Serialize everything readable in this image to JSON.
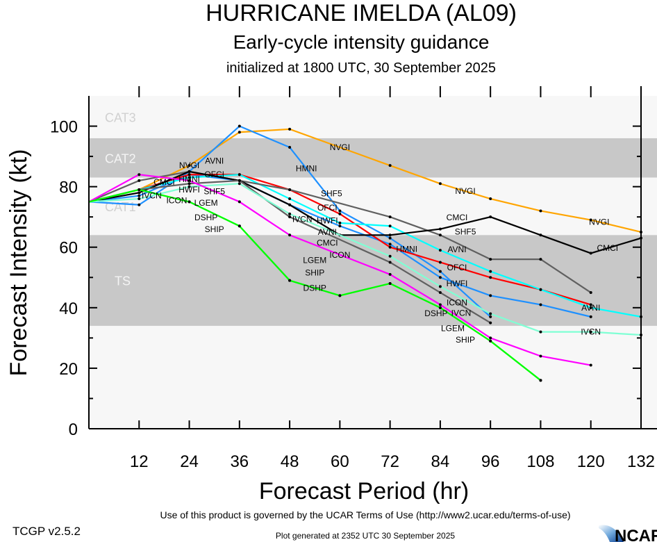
{
  "chart_data": {
    "type": "line",
    "title": "HURRICANE IMELDA (AL09)",
    "subtitle": "Early-cycle intensity guidance",
    "subtitle2": "initialized at 1800 UTC, 30 September 2025",
    "xlabel": "Forecast Period (hr)",
    "ylabel": "Forecast Intensity (kt)",
    "xlim": [
      0,
      132
    ],
    "ylim": [
      0,
      110
    ],
    "xticks": [
      12,
      24,
      36,
      48,
      60,
      72,
      84,
      96,
      108,
      120,
      132
    ],
    "yticks": [
      0,
      20,
      40,
      60,
      80,
      100
    ],
    "grid": false,
    "bands": [
      {
        "label": "CAT3",
        "from": 96,
        "to": 110,
        "color": "#f7f7f7",
        "label_color": "#d0d0d0"
      },
      {
        "label": "CAT2",
        "from": 83,
        "to": 96,
        "color": "#c8c8c8",
        "label_color": "#f4f4f4"
      },
      {
        "label": "CAT1",
        "from": 64,
        "to": 83,
        "color": "#f7f7f7",
        "label_color": "#d0d0d0"
      },
      {
        "label": "TS",
        "from": 34,
        "to": 64,
        "color": "#c8c8c8",
        "label_color": "#f4f4f4"
      },
      {
        "label": "",
        "from": 0,
        "to": 34,
        "color": "#f7f7f7",
        "label_color": "#d0d0d0"
      }
    ],
    "series": [
      {
        "name": "NVGI",
        "color": "#ffa500",
        "x": [
          0,
          12,
          24,
          36,
          48,
          72,
          84,
          96,
          108,
          120,
          132
        ],
        "y": [
          75,
          79,
          87,
          98,
          99,
          87,
          81,
          76,
          72,
          69,
          65
        ],
        "label_at": [
          24,
          60,
          90,
          122
        ]
      },
      {
        "name": "HMNI",
        "color": "#1e90ff",
        "x": [
          0,
          12,
          24,
          36,
          48,
          60,
          72,
          84,
          96
        ],
        "y": [
          75,
          74,
          85,
          100,
          93,
          72,
          63,
          52,
          37
        ],
        "label_at": [
          24,
          52,
          76
        ]
      },
      {
        "name": "HWFI",
        "color": "#1e90ff",
        "x": [
          0,
          12,
          24,
          36,
          48,
          60,
          72,
          84,
          96,
          108,
          120
        ],
        "y": [
          75,
          77,
          84,
          82,
          74,
          67,
          61,
          50,
          44,
          41,
          37
        ],
        "label_at": [
          24,
          57,
          88
        ]
      },
      {
        "name": "OFCI",
        "color": "#ff0000",
        "x": [
          0,
          12,
          24,
          36,
          48,
          60,
          72,
          84,
          96,
          108,
          120
        ],
        "y": [
          75,
          79,
          84,
          84,
          79,
          71,
          60,
          55,
          50,
          46,
          41
        ],
        "label_at": [
          24,
          57,
          88
        ]
      },
      {
        "name": "AVNI",
        "color": "#00ffff",
        "x": [
          0,
          12,
          24,
          36,
          48,
          60,
          72,
          84,
          96,
          108,
          120,
          132
        ],
        "y": [
          75,
          79,
          83,
          84,
          76,
          68,
          67,
          59,
          52,
          46,
          40,
          37
        ],
        "label_at": [
          24,
          57,
          88,
          120
        ]
      },
      {
        "name": "SHF5",
        "color": "#606060",
        "x": [
          0,
          12,
          24,
          36,
          48,
          72,
          84,
          96,
          108,
          120
        ],
        "y": [
          75,
          82,
          85,
          82,
          79,
          70,
          64,
          56,
          56,
          45
        ],
        "label_at": [
          24,
          58,
          90
        ]
      },
      {
        "name": "CMCI",
        "color": "#000000",
        "x": [
          0,
          12,
          24,
          36,
          48,
          60,
          72,
          84,
          96,
          108,
          120,
          132
        ],
        "y": [
          75,
          78,
          85,
          82,
          74,
          64,
          64,
          66,
          70,
          64,
          58,
          63
        ],
        "label_at": [
          24,
          56,
          88,
          124
        ]
      },
      {
        "name": "ICON",
        "color": "#606060",
        "x": [
          0,
          12,
          24,
          36,
          48,
          72,
          84,
          96
        ],
        "y": [
          75,
          79,
          81,
          82,
          70,
          55,
          45,
          35
        ],
        "label_at": [
          24,
          56,
          88
        ]
      },
      {
        "name": "IVCN",
        "color": "#7fffd4",
        "x": [
          0,
          12,
          24,
          36,
          48,
          72,
          84,
          96,
          108,
          120,
          132
        ],
        "y": [
          75,
          76,
          80,
          81,
          71,
          57,
          47,
          38,
          32,
          32,
          31
        ],
        "label_at": [
          24,
          56,
          88,
          120
        ]
      },
      {
        "name": "LGEM",
        "color": "#ff00ff",
        "x": [
          0,
          12,
          24,
          36,
          48,
          72,
          84,
          96,
          108,
          120
        ],
        "y": [
          75,
          84,
          82,
          75,
          64,
          51,
          41,
          30,
          24,
          21
        ],
        "label_at": [
          26,
          55,
          87
        ]
      },
      {
        "name": "DSHP",
        "color": "#00ff00",
        "x": [
          0,
          12,
          24,
          36,
          48,
          60,
          72,
          84,
          96,
          108
        ],
        "y": [
          75,
          79,
          75,
          67,
          49,
          44,
          48,
          40,
          29,
          16
        ],
        "label_at": [
          28,
          54,
          86
        ]
      },
      {
        "name": "SHIP",
        "color": "#00ff00",
        "x": [
          0,
          12,
          24,
          36,
          48,
          60,
          72,
          84,
          96,
          108
        ],
        "y": [
          75,
          79,
          75,
          67,
          49,
          44,
          48,
          40,
          29,
          16
        ],
        "label_at": [
          28,
          54,
          86
        ]
      }
    ]
  },
  "footer": {
    "terms": "Use of this product is governed by the UCAR Terms of Use (http://www2.ucar.edu/terms-of-use)",
    "version": "TCGP v2.5.2",
    "generated": "Plot generated at 2352 UTC   30 September 2025",
    "logo": "NCAR"
  }
}
